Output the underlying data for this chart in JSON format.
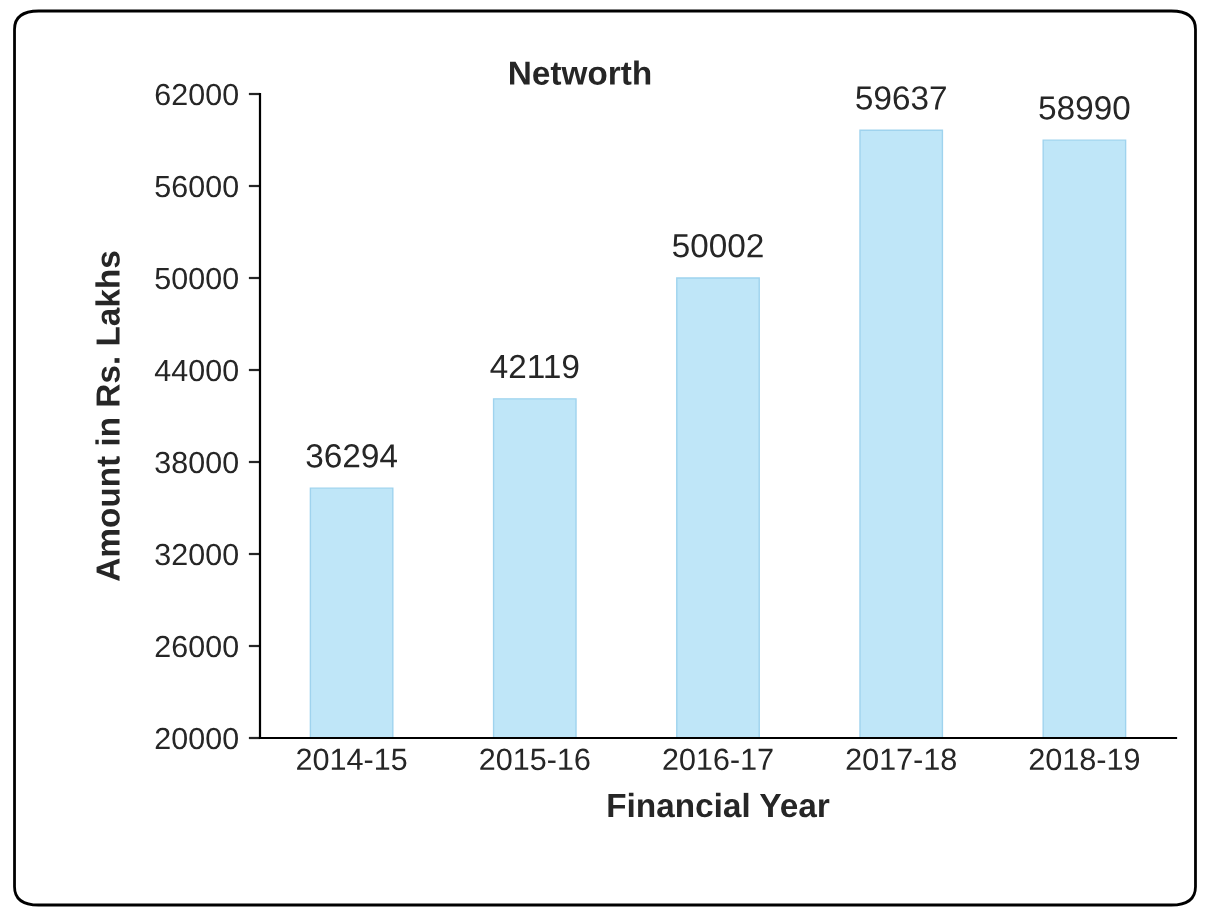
{
  "chart_data": {
    "type": "bar",
    "title": "Networth",
    "xlabel": "Financial Year",
    "ylabel": "Amount in Rs. Lakhs",
    "categories": [
      "2014-15",
      "2015-16",
      "2016-17",
      "2017-18",
      "2018-19"
    ],
    "values": [
      36294,
      42119,
      50002,
      59637,
      58990
    ],
    "color": "#bfe6f8",
    "ylim": [
      20000,
      62000
    ],
    "yticks": [
      20000,
      26000,
      32000,
      38000,
      44000,
      50000,
      56000,
      62000
    ],
    "data_labels": true,
    "grid": false,
    "legend": false
  }
}
